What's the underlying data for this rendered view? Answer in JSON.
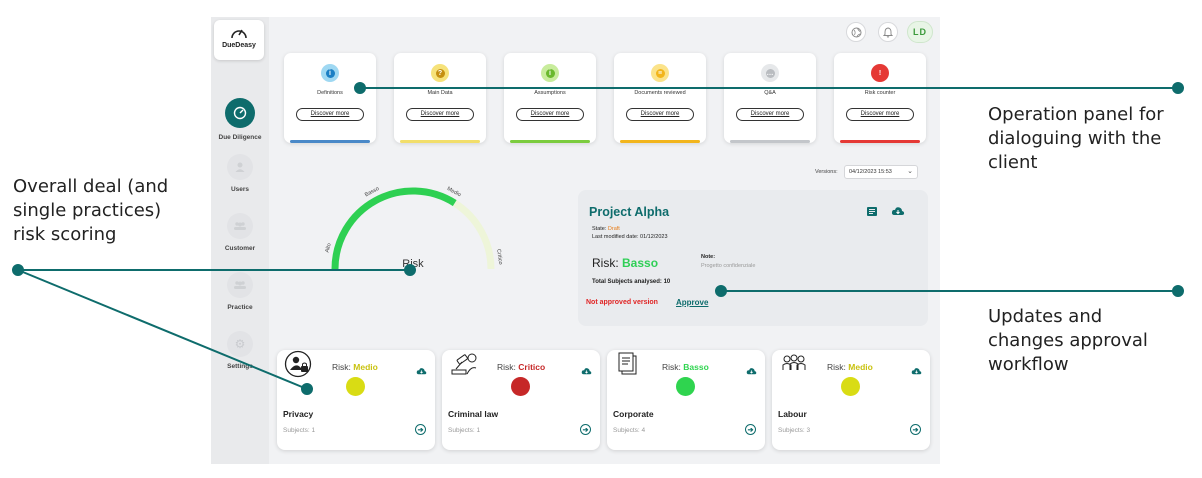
{
  "app": {
    "logo_text": "DueDeasy",
    "avatar_initials": "LD"
  },
  "sidebar": {
    "items": [
      {
        "label": "Due Diligence",
        "icon": "gauge-icon",
        "active": true
      },
      {
        "label": "Users",
        "icon": "user-icon",
        "active": false
      },
      {
        "label": "Customer",
        "icon": "group-icon",
        "active": false
      },
      {
        "label": "Practice",
        "icon": "group-icon",
        "active": false
      },
      {
        "label": "Settings",
        "icon": "gear-icon",
        "active": false
      }
    ]
  },
  "operation_cards": [
    {
      "title": "Definitions",
      "button": "Discover more",
      "icon": "info-icon",
      "icon_glyph": "i",
      "icon_bg": "#9fd8f2",
      "icon_inner": "#1b7fc4",
      "bar_color": "#4a89c8"
    },
    {
      "title": "Main Data",
      "button": "Discover more",
      "icon": "help-icon",
      "icon_glyph": "?",
      "icon_bg": "#f6e27a",
      "icon_inner": "#c58f10",
      "bar_color": "#f2de6a"
    },
    {
      "title": "Assumptions",
      "button": "Discover more",
      "icon": "info-icon",
      "icon_glyph": "i",
      "icon_bg": "#c8ec9c",
      "icon_inner": "#6ab92d",
      "bar_color": "#7ccc3e"
    },
    {
      "title": "Documents reviewed",
      "button": "Discover more",
      "icon": "list-icon",
      "icon_glyph": "≡",
      "icon_bg": "#fbe38a",
      "icon_inner": "#f2b51c",
      "bar_color": "#f2b51c"
    },
    {
      "title": "Q&A",
      "button": "Discover more",
      "icon": "chat-icon",
      "icon_glyph": "…",
      "icon_bg": "#e6e8ea",
      "icon_inner": "#b9bcc0",
      "bar_color": "#c3c6ca"
    },
    {
      "title": "Risk counter",
      "button": "Discover more",
      "icon": "warning-icon",
      "icon_glyph": "!",
      "icon_bg": "#e53935",
      "icon_inner": "#e53935",
      "bar_color": "#e53935"
    }
  ],
  "versions": {
    "label": "Versions:",
    "selected": "04/12/2023 15:53"
  },
  "gauge": {
    "center_label": "Risk",
    "level_labels": [
      "Alto",
      "Basso",
      "Medio",
      "Critico"
    ],
    "level_fraction": 0.68
  },
  "project": {
    "title": "Project Alpha",
    "state_label": "State:",
    "state_value": "Draft",
    "modified_label": "Last modified date:",
    "modified_value": "01/12/2023",
    "risk_label": "Risk:",
    "risk_value": "Basso",
    "note_label": "Note:",
    "note_text": "Progetto confidenziale",
    "total_subjects": "Total Subjects analysed: 10",
    "not_approved": "Not approved version",
    "approve": "Approve"
  },
  "practices": [
    {
      "name": "Privacy",
      "risk_label": "Risk:",
      "risk_value": "Medio",
      "risk_color": "#d9dc14",
      "subjects": "Subjects: 1",
      "image": "person-lock-icon"
    },
    {
      "name": "Criminal law",
      "risk_label": "Risk:",
      "risk_value": "Critico",
      "risk_color": "#c62828",
      "subjects": "Subjects: 1",
      "image": "gavel-icon"
    },
    {
      "name": "Corporate",
      "risk_label": "Risk:",
      "risk_value": "Basso",
      "risk_color": "#2fd44f",
      "subjects": "Subjects: 4",
      "image": "document-stack-icon"
    },
    {
      "name": "Labour",
      "risk_label": "Risk:",
      "risk_value": "Medio",
      "risk_color": "#d9dc14",
      "subjects": "Subjects: 3",
      "image": "team-icon"
    }
  ],
  "callouts": {
    "operation": [
      "Operation panel for",
      "dialoguing with the",
      "client"
    ],
    "risk": [
      "Overall deal (and",
      "single practices)",
      "risk scoring"
    ],
    "updates": [
      "Updates and",
      "changes approval",
      "workflow"
    ]
  },
  "colors": {
    "accent": "#0e6c6c",
    "callout_line": "#0e6c6c"
  }
}
